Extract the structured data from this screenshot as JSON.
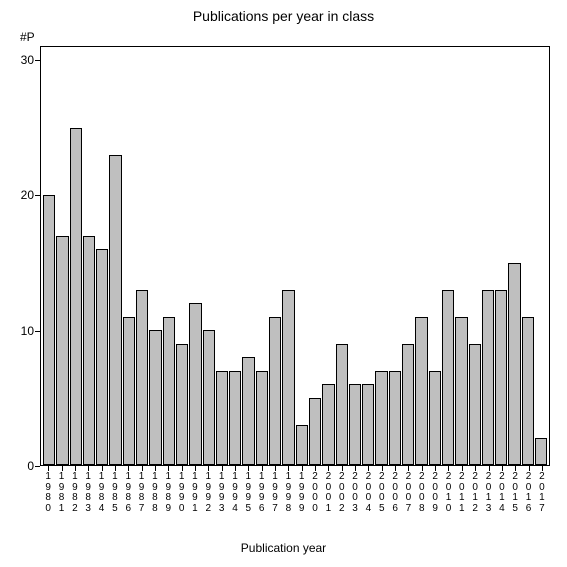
{
  "chart": {
    "type": "bar",
    "title": "Publications per year in class",
    "y_axis_label": "#P",
    "x_axis_label": "Publication year",
    "ylim": [
      0,
      31
    ],
    "y_ticks": [
      0,
      10,
      20,
      30
    ],
    "bar_color": "#bfbfbf",
    "bar_border_color": "#000000",
    "background_color": "#ffffff",
    "axis_color": "#000000",
    "title_fontsize": 14,
    "label_fontsize": 12,
    "tick_fontsize": 11,
    "categories": [
      "1980",
      "1981",
      "1982",
      "1983",
      "1984",
      "1985",
      "1986",
      "1987",
      "1988",
      "1989",
      "1990",
      "1991",
      "1992",
      "1993",
      "1994",
      "1995",
      "1996",
      "1997",
      "1998",
      "1999",
      "2000",
      "2001",
      "2002",
      "2003",
      "2004",
      "2005",
      "2006",
      "2007",
      "2008",
      "2009",
      "2010",
      "2011",
      "2012",
      "2013",
      "2014",
      "2015",
      "2016",
      "2017"
    ],
    "values": [
      20,
      17,
      25,
      17,
      16,
      23,
      11,
      13,
      10,
      11,
      9,
      12,
      10,
      7,
      7,
      8,
      7,
      11,
      13,
      3,
      5,
      6,
      9,
      6,
      6,
      7,
      7,
      9,
      11,
      7,
      13,
      11,
      9,
      13,
      13,
      15,
      11,
      2
    ]
  }
}
